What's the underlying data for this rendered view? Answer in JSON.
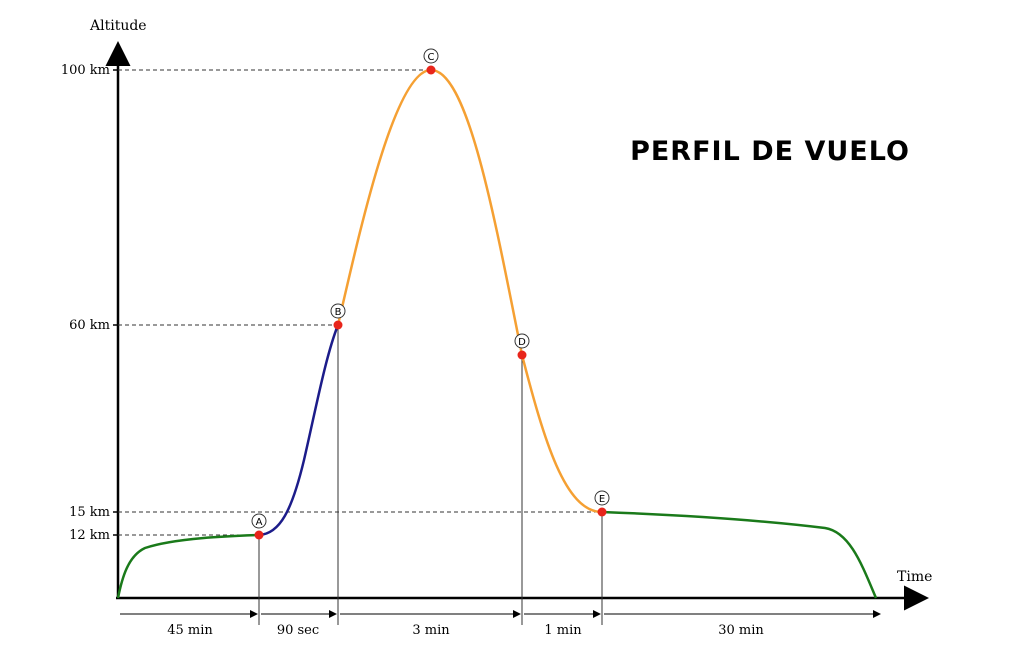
{
  "title": "PERFIL DE VUELO",
  "axes": {
    "y_label": "Altitude",
    "x_label": "Time",
    "y_ticks": [
      "100 km",
      "60 km",
      "15 km",
      "12 km"
    ]
  },
  "points": [
    "A",
    "B",
    "C",
    "D",
    "E"
  ],
  "durations": [
    "45 min",
    "90 sec",
    "3 min",
    "1 min",
    "30 min"
  ],
  "colors": {
    "ground_phase": "#1a7a1a",
    "boost_phase": "#1c1c8a",
    "ballistic_phase": "#f5a033",
    "marker": "#e8251b",
    "axis": "#000000",
    "guide": "#333333"
  }
}
